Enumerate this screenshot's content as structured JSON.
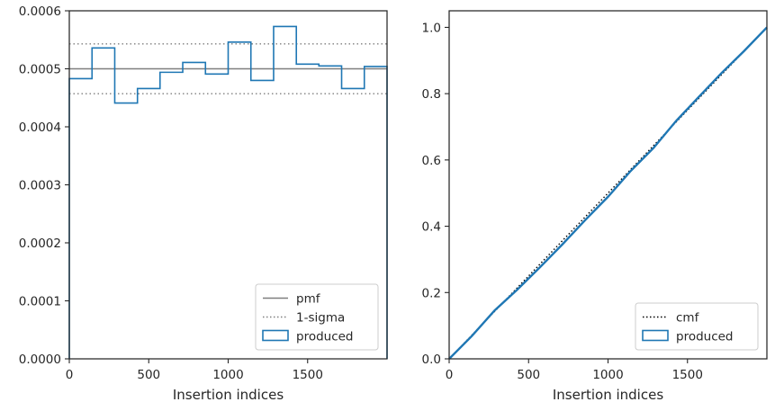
{
  "chart_data": [
    {
      "type": "line",
      "subtype": "step-histogram",
      "xlabel": "Insertion indices",
      "ylabel": "",
      "xlim": [
        0,
        2000
      ],
      "ylim": [
        0,
        0.0006
      ],
      "xticks": [
        0,
        500,
        1000,
        1500
      ],
      "yticks": [
        0.0,
        0.0001,
        0.0002,
        0.0003,
        0.0004,
        0.0005,
        0.0006
      ],
      "ytick_labels": [
        "0.0000",
        "0.0001",
        "0.0002",
        "0.0003",
        "0.0004",
        "0.0005",
        "0.0006"
      ],
      "grid": false,
      "legend_position": "lower-right",
      "bin_edges": [
        0,
        143,
        286,
        429,
        571,
        714,
        857,
        1000,
        1143,
        1286,
        1429,
        1571,
        1714,
        1857,
        2000
      ],
      "series": [
        {
          "name": "pmf",
          "kind": "hline",
          "value": 0.0005,
          "color": "#7f7f7f",
          "style": "solid"
        },
        {
          "name": "1-sigma",
          "kind": "hline-pair",
          "values": [
            0.000457,
            0.000543
          ],
          "color": "#7f7f7f",
          "style": "dotted"
        },
        {
          "name": "produced",
          "kind": "step",
          "color": "#1f77b4",
          "values": [
            0.000483,
            0.000536,
            0.000441,
            0.000466,
            0.000494,
            0.000511,
            0.000491,
            0.000546,
            0.00048,
            0.000573,
            0.000508,
            0.000505,
            0.000466,
            0.000504
          ]
        }
      ]
    },
    {
      "type": "line",
      "xlabel": "Insertion indices",
      "ylabel": "",
      "xlim": [
        0,
        2000
      ],
      "ylim": [
        0,
        1.05
      ],
      "xticks": [
        0,
        500,
        1000,
        1500
      ],
      "yticks": [
        0.0,
        0.2,
        0.4,
        0.6,
        0.8,
        1.0
      ],
      "ytick_labels": [
        "0.0",
        "0.2",
        "0.4",
        "0.6",
        "0.8",
        "1.0"
      ],
      "grid": false,
      "legend_position": "lower-right",
      "series": [
        {
          "name": "cmf",
          "kind": "line",
          "x": [
            0,
            2000
          ],
          "y": [
            0,
            1.0
          ],
          "color": "#000000",
          "style": "dotted"
        },
        {
          "name": "produced",
          "kind": "step-cumulative",
          "color": "#1f77b4",
          "x": [
            0,
            143,
            286,
            429,
            571,
            714,
            857,
            1000,
            1143,
            1286,
            1429,
            1571,
            1714,
            1857,
            2000
          ],
          "y": [
            0,
            0.069,
            0.146,
            0.209,
            0.276,
            0.346,
            0.419,
            0.489,
            0.567,
            0.636,
            0.718,
            0.79,
            0.862,
            0.929,
            1.0
          ]
        }
      ]
    }
  ]
}
